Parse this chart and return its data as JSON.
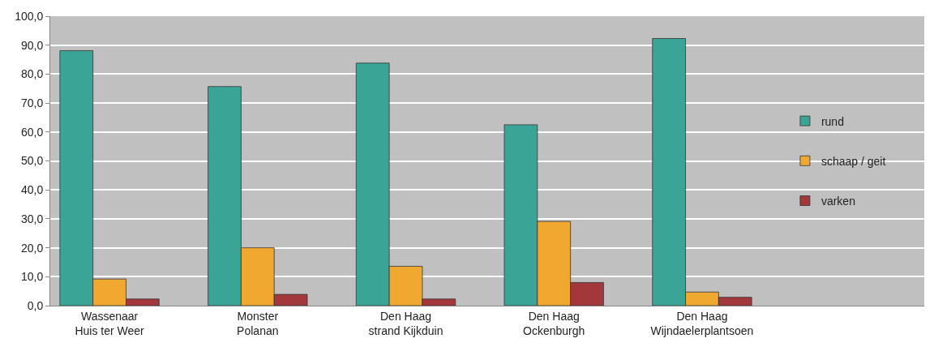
{
  "chart_data": {
    "type": "bar",
    "categories": [
      "Wassenaar\nHuis ter Weer",
      "Monster\nPolanan",
      "Den Haag\nstrand Kijkduin",
      "Den Haag\nOckenburgh",
      "Den Haag\nWijndaelerplantsoen"
    ],
    "series": [
      {
        "name": "rund",
        "color": "#3aa597",
        "values": [
          88.1,
          75.7,
          83.8,
          62.5,
          92.3
        ]
      },
      {
        "name": "schaap / geit",
        "color": "#f0a830",
        "values": [
          9.2,
          20.0,
          13.6,
          29.1,
          4.7
        ]
      },
      {
        "name": "varken",
        "color": "#a3383c",
        "values": [
          2.3,
          3.9,
          2.3,
          8.0,
          2.9
        ]
      }
    ],
    "ylim": [
      0,
      100
    ],
    "yticks": [
      {
        "value": 0,
        "label": "0,0"
      },
      {
        "value": 10,
        "label": "10,0"
      },
      {
        "value": 20,
        "label": "20,0"
      },
      {
        "value": 30,
        "label": "30,0"
      },
      {
        "value": 40,
        "label": "40,0"
      },
      {
        "value": 50,
        "label": "50,0"
      },
      {
        "value": 60,
        "label": "60,0"
      },
      {
        "value": 70,
        "label": "70,0"
      },
      {
        "value": 80,
        "label": "80,0"
      },
      {
        "value": 90,
        "label": "90,0"
      },
      {
        "value": 100,
        "label": "100,0"
      }
    ],
    "grid": "y",
    "legend": "right"
  }
}
